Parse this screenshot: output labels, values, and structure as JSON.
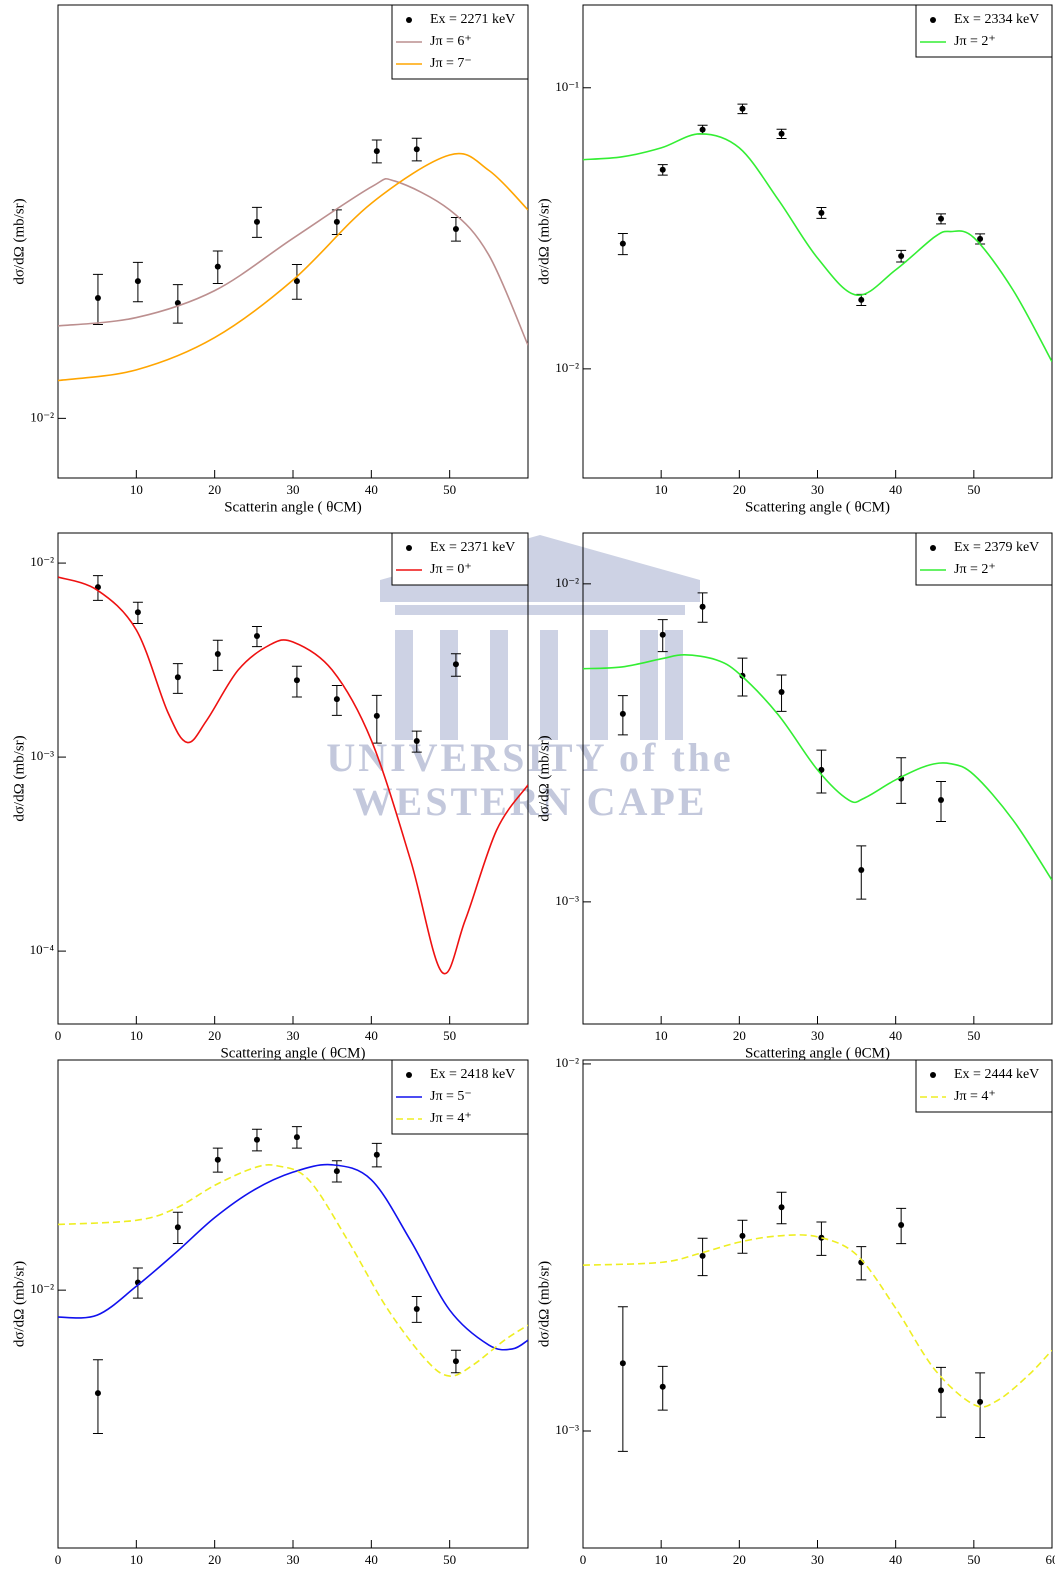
{
  "watermark": {
    "line1": "UNIVERSITY of the",
    "line2": "WESTERN CAPE"
  },
  "chart_data": [
    {
      "type": "scatter",
      "x_label": "Scatterin angle ( θCM)",
      "y_label": "dσ/dΩ (mb/sr)",
      "log_y": true,
      "legend": "upper right",
      "xlim": [
        0,
        60
      ],
      "ylim": [
        0.0076,
        0.067
      ],
      "xticks": [
        10,
        20,
        30,
        40,
        50
      ],
      "yticks": [
        {
          "value": 0.01,
          "label": "10⁻²"
        }
      ],
      "series": [
        {
          "name": "Ex = 2271 keV",
          "color": "#000000",
          "x": [
            5.1,
            10.2,
            15.3,
            20.4,
            25.4,
            30.5,
            35.6,
            40.7,
            45.8,
            50.8
          ],
          "values": [
            0.0174,
            0.0188,
            0.017,
            0.0201,
            0.0247,
            0.0188,
            0.0247,
            0.0342,
            0.0345,
            0.0239
          ],
          "errors": [
            0.002,
            0.0017,
            0.0015,
            0.0015,
            0.0017,
            0.0015,
            0.0014,
            0.0018,
            0.0018,
            0.0013
          ]
        },
        {
          "name": "Jπ = 6⁺",
          "color": "#bc8f8f",
          "line": "solid",
          "x": [
            0,
            10,
            20,
            30,
            40,
            43,
            50,
            55,
            60
          ],
          "values": [
            0.0153,
            0.0159,
            0.018,
            0.0229,
            0.029,
            0.0298,
            0.0261,
            0.0212,
            0.014
          ]
        },
        {
          "name": "Jπ = 7⁻",
          "color": "#ffa500",
          "line": "solid",
          "x": [
            0,
            10,
            20,
            30,
            40,
            50,
            55,
            60
          ],
          "values": [
            0.0119,
            0.0125,
            0.0145,
            0.0189,
            0.0269,
            0.0336,
            0.0313,
            0.0261
          ]
        }
      ]
    },
    {
      "type": "scatter",
      "x_label": "Scattering angle ( θCM)",
      "y_label": "dσ/dΩ (mb/sr)",
      "log_y": true,
      "legend": "upper right",
      "xlim": [
        0,
        60
      ],
      "ylim": [
        0.00409,
        0.197
      ],
      "xticks": [
        10,
        20,
        30,
        40,
        50
      ],
      "yticks": [
        {
          "value": 0.1,
          "label": "10⁻¹"
        },
        {
          "value": 0.01,
          "label": "10⁻²"
        }
      ],
      "series": [
        {
          "name": "Ex = 2334 keV",
          "color": "#000000",
          "x": [
            5.1,
            10.2,
            15.3,
            20.4,
            25.4,
            30.5,
            35.6,
            40.7,
            45.8,
            50.8
          ],
          "values": [
            0.0279,
            0.0511,
            0.071,
            0.0842,
            0.0686,
            0.0359,
            0.0176,
            0.0252,
            0.0342,
            0.029
          ],
          "errors": [
            0.0024,
            0.0022,
            0.0026,
            0.0033,
            0.0026,
            0.0016,
            0.0008,
            0.0012,
            0.0014,
            0.0012
          ]
        },
        {
          "name": "Jπ = 2⁺",
          "color": "#33ee33",
          "line": "solid",
          "x": [
            0,
            5,
            10,
            15,
            20,
            25,
            30,
            35,
            40,
            45,
            47,
            50,
            55,
            60
          ],
          "values": [
            0.0555,
            0.0568,
            0.0611,
            0.0686,
            0.0611,
            0.0399,
            0.0248,
            0.0183,
            0.0225,
            0.0295,
            0.0308,
            0.0293,
            0.0191,
            0.0106
          ]
        }
      ]
    },
    {
      "type": "scatter",
      "x_label": "Scattering angle ( θCM)",
      "y_label": "dσ/dΩ (mb/sr)",
      "log_y": true,
      "legend": "upper right",
      "xlim": [
        0,
        60
      ],
      "ylim": [
        4.21e-05,
        0.01429
      ],
      "xticks": [
        0,
        10,
        20,
        30,
        40,
        50
      ],
      "yticks": [
        {
          "value": 0.01,
          "label": "10⁻²"
        },
        {
          "value": 0.001,
          "label": "10⁻³"
        },
        {
          "value": 0.0001,
          "label": "10⁻⁴"
        }
      ],
      "series": [
        {
          "name": "Ex = 2371 keV",
          "color": "#000000",
          "x": [
            5.1,
            10.2,
            15.3,
            20.4,
            25.4,
            30.5,
            35.6,
            40.7,
            45.8,
            50.8
          ],
          "values": [
            0.00752,
            0.00558,
            0.00258,
            0.0034,
            0.00421,
            0.00249,
            0.00199,
            0.00163,
            0.00121,
            0.00301
          ],
          "errors": [
            0.0011,
            0.0007,
            0.00045,
            0.0006,
            0.0005,
            0.00045,
            0.00035,
            0.00045,
            0.00015,
            0.0004
          ]
        },
        {
          "name": "Jπ = 0⁺",
          "color": "#ee1111",
          "line": "solid",
          "x": [
            0,
            5,
            10,
            14,
            16.5,
            19,
            23,
            27,
            30,
            35,
            40,
            45,
            49,
            52,
            56,
            60
          ],
          "values": [
            0.00847,
            0.00726,
            0.00452,
            0.00171,
            0.00119,
            0.00155,
            0.00281,
            0.00378,
            0.00392,
            0.00281,
            0.00122,
            0.000295,
            7.8e-05,
            0.000145,
            0.000421,
            0.000718
          ]
        }
      ]
    },
    {
      "type": "scatter",
      "x_label": "Scattering angle ( θCM)",
      "y_label": "dσ/dΩ (mb/sr)",
      "log_y": true,
      "legend": "upper right",
      "xlim": [
        0,
        60
      ],
      "ylim": [
        0.000413,
        0.01445
      ],
      "xticks": [
        10,
        20,
        30,
        40,
        50
      ],
      "yticks": [
        {
          "value": 0.01,
          "label": "10⁻²"
        },
        {
          "value": 0.001,
          "label": "10⁻³"
        }
      ],
      "series": [
        {
          "name": "Ex = 2379 keV",
          "color": "#000000",
          "x": [
            5.1,
            10.2,
            15.3,
            20.4,
            25.4,
            30.5,
            35.6,
            40.7,
            45.8
          ],
          "values": [
            0.0039,
            0.00692,
            0.00847,
            0.00514,
            0.00457,
            0.0026,
            0.00126,
            0.00244,
            0.00209
          ],
          "errors": [
            0.00055,
            0.0008,
            0.0009,
            0.0007,
            0.0006,
            0.0004,
            0.00024,
            0.0004,
            0.0003
          ]
        },
        {
          "name": "Jπ = 2⁺",
          "color": "#33ee33",
          "line": "solid",
          "x": [
            0,
            5,
            10,
            13,
            17,
            20,
            25,
            30,
            34,
            36,
            40,
            44,
            47,
            50,
            55,
            60
          ],
          "values": [
            0.00541,
            0.00548,
            0.00581,
            0.00598,
            0.00577,
            0.00521,
            0.00387,
            0.0026,
            0.00209,
            0.00212,
            0.00242,
            0.00268,
            0.00272,
            0.00251,
            0.00181,
            0.00117
          ]
        }
      ]
    },
    {
      "type": "scatter",
      "x_label": "Scattering angle ( θCM)",
      "y_label": "dσ/dΩ (mb/sr)",
      "log_y": true,
      "legend": "upper right",
      "xlim": [
        0,
        60
      ],
      "ylim": [
        0.00267,
        0.0325
      ],
      "xticks": [
        0,
        10,
        20,
        30,
        40,
        50
      ],
      "yticks": [
        {
          "value": 0.01,
          "label": "10⁻²"
        }
      ],
      "series": [
        {
          "name": "Ex = 2418 keV",
          "color": "#000000",
          "x": [
            5.1,
            10.2,
            15.3,
            20.4,
            25.4,
            30.5,
            35.6,
            40.7,
            45.8,
            50.8
          ],
          "values": [
            0.0059,
            0.0104,
            0.0138,
            0.0195,
            0.0216,
            0.0219,
            0.0184,
            0.02,
            0.00908,
            0.00695
          ],
          "errors": [
            0.0011,
            0.0008,
            0.0011,
            0.0012,
            0.0012,
            0.0012,
            0.001,
            0.0012,
            0.0006,
            0.0004
          ]
        },
        {
          "name": "Jπ = 5⁻",
          "color": "#1111ee",
          "line": "solid",
          "x": [
            0,
            5,
            10,
            15,
            20,
            25,
            30,
            35,
            40,
            45,
            50,
            55,
            58,
            60
          ],
          "values": [
            0.00871,
            0.0088,
            0.0102,
            0.0121,
            0.0145,
            0.0167,
            0.0183,
            0.019,
            0.0176,
            0.0129,
            0.00903,
            0.00755,
            0.0074,
            0.00774
          ]
        },
        {
          "name": "Jπ = 4⁺",
          "color": "#eeee22",
          "line": "dashed",
          "x": [
            0,
            10,
            15,
            20,
            25,
            28,
            32,
            37,
            42,
            47,
            50,
            53,
            57,
            60
          ],
          "values": [
            0.014,
            0.0143,
            0.0152,
            0.0171,
            0.0187,
            0.0189,
            0.0176,
            0.0129,
            0.00912,
            0.00699,
            0.00644,
            0.00682,
            0.00774,
            0.00836
          ]
        }
      ]
    },
    {
      "type": "scatter",
      "x_label": "Scattering angle ( θCM)",
      "y_label": "dσ/dΩ (mb/sr)",
      "log_y": true,
      "legend": "upper right",
      "xlim": [
        0,
        60
      ],
      "ylim": [
        0.00048,
        0.01025
      ],
      "xticks": [
        0,
        10,
        20,
        30,
        40,
        50,
        60
      ],
      "yticks": [
        {
          "value": 0.01,
          "label": "10⁻²"
        },
        {
          "value": 0.001,
          "label": "10⁻³"
        }
      ],
      "series": [
        {
          "name": "Ex = 2444 keV",
          "color": "#000000",
          "x": [
            5.1,
            10.2,
            15.3,
            20.4,
            25.4,
            30.5,
            35.6,
            40.7,
            45.8,
            50.8
          ],
          "values": [
            0.00153,
            0.00132,
            0.003,
            0.0034,
            0.00407,
            0.00336,
            0.00288,
            0.00364,
            0.00129,
            0.0012
          ],
          "errors": [
            0.00065,
            0.00018,
            0.00035,
            0.00035,
            0.0004,
            0.00035,
            0.0003,
            0.0004,
            0.0002,
            0.00024
          ]
        },
        {
          "name": "Jπ = 4⁺",
          "color": "#eeee22",
          "line": "dashed",
          "x": [
            0,
            10,
            15,
            20,
            25,
            30,
            35,
            40,
            45,
            50,
            53,
            57,
            60
          ],
          "values": [
            0.00283,
            0.00288,
            0.00305,
            0.00327,
            0.0034,
            0.00338,
            0.00302,
            0.00216,
            0.00147,
            0.00118,
            0.00121,
            0.00142,
            0.00166
          ]
        }
      ]
    }
  ]
}
